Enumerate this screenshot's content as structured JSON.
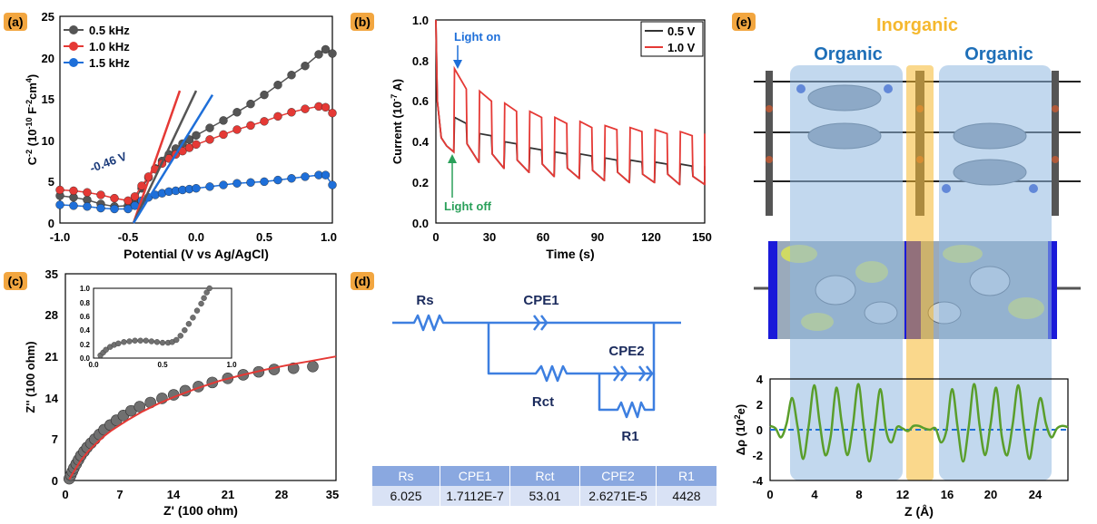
{
  "chart_data": [
    {
      "panel": "(a)",
      "type": "scatter",
      "xlabel": "Potential (V vs Ag/AgCl)",
      "ylabel_base": "C",
      "ylabel_sup": "-2",
      "ylabel_mid": " (10",
      "ylabel_sup2": "-10",
      "ylabel_mid2": " F",
      "ylabel_sup3": "-2",
      "ylabel_mid3": "cm",
      "ylabel_sup4": "4",
      "ylabel_end": ")",
      "xlim": [
        -1.0,
        1.0
      ],
      "ylim": [
        0,
        25
      ],
      "xticks": [
        "-1.0",
        "-0.5",
        "0.0",
        "0.5",
        "1.0"
      ],
      "yticks": [
        "0",
        "5",
        "10",
        "15",
        "20",
        "25"
      ],
      "annotation": "-0.46 V",
      "series": [
        {
          "name": "0.5 kHz",
          "color": "#555555",
          "x": [
            -1.0,
            -0.9,
            -0.8,
            -0.7,
            -0.6,
            -0.5,
            -0.45,
            -0.4,
            -0.35,
            -0.3,
            -0.25,
            -0.2,
            -0.15,
            -0.1,
            -0.05,
            0.0,
            0.1,
            0.2,
            0.3,
            0.4,
            0.5,
            0.6,
            0.7,
            0.8,
            0.9,
            0.95,
            1.0
          ],
          "y": [
            3.3,
            3.1,
            2.8,
            2.3,
            2.0,
            2.1,
            2.8,
            4.2,
            5.5,
            6.6,
            7.5,
            8.3,
            9.0,
            9.6,
            10.1,
            10.6,
            11.5,
            12.4,
            13.4,
            14.4,
            15.5,
            16.7,
            17.9,
            19.0,
            20.4,
            21.0,
            20.5
          ]
        },
        {
          "name": "1.0 kHz",
          "color": "#e53935",
          "x": [
            -1.0,
            -0.9,
            -0.8,
            -0.7,
            -0.6,
            -0.5,
            -0.45,
            -0.4,
            -0.35,
            -0.3,
            -0.25,
            -0.2,
            -0.15,
            -0.1,
            -0.05,
            0.0,
            0.1,
            0.2,
            0.3,
            0.4,
            0.5,
            0.6,
            0.7,
            0.8,
            0.9,
            0.95,
            1.0
          ],
          "y": [
            4.0,
            3.9,
            3.7,
            3.4,
            3.0,
            2.7,
            3.2,
            4.5,
            5.6,
            6.5,
            7.2,
            7.8,
            8.3,
            8.7,
            9.1,
            9.5,
            10.1,
            10.7,
            11.3,
            11.8,
            12.3,
            12.9,
            13.4,
            13.8,
            14.1,
            14.0,
            13.3
          ]
        },
        {
          "name": "1.5 kHz",
          "color": "#1e6fd9",
          "x": [
            -1.0,
            -0.9,
            -0.8,
            -0.7,
            -0.6,
            -0.5,
            -0.45,
            -0.4,
            -0.35,
            -0.3,
            -0.25,
            -0.2,
            -0.15,
            -0.1,
            -0.05,
            0.0,
            0.1,
            0.2,
            0.3,
            0.4,
            0.5,
            0.6,
            0.7,
            0.8,
            0.9,
            0.95,
            1.0
          ],
          "y": [
            2.2,
            2.1,
            2.0,
            1.8,
            1.7,
            1.7,
            2.1,
            2.7,
            3.1,
            3.4,
            3.6,
            3.8,
            3.9,
            4.0,
            4.1,
            4.2,
            4.4,
            4.6,
            4.8,
            4.9,
            5.0,
            5.2,
            5.4,
            5.6,
            5.8,
            5.8,
            4.6
          ]
        }
      ],
      "fit_lines": [
        {
          "color": "#e53935",
          "x": [
            -0.46,
            -0.12
          ],
          "y": [
            0,
            16
          ]
        },
        {
          "color": "#555555",
          "x": [
            -0.46,
            -0.0
          ],
          "y": [
            0,
            16
          ]
        },
        {
          "color": "#1e6fd9",
          "x": [
            -0.46,
            0.12
          ],
          "y": [
            0,
            15.5
          ]
        }
      ]
    },
    {
      "panel": "(b)",
      "type": "line",
      "xlabel": "Time (s)",
      "ylabel_pre": "Current (10",
      "ylabel_sup": "-7",
      "ylabel_post": " A)",
      "xlim": [
        0,
        150
      ],
      "ylim": [
        0,
        1.0
      ],
      "xticks": [
        "0",
        "30",
        "60",
        "90",
        "120",
        "150"
      ],
      "yticks": [
        "0.0",
        "0.2",
        "0.4",
        "0.6",
        "0.8",
        "1.0"
      ],
      "annotation_on": "Light on",
      "annotation_off": "Light off",
      "period": 14,
      "on_duration": 7,
      "series": [
        {
          "name": "0.5 V",
          "color": "#333333",
          "peaks": [
            0.52,
            0.44,
            0.4,
            0.37,
            0.35,
            0.34,
            0.32,
            0.31,
            0.3,
            0.29,
            0.28
          ],
          "plateaus": [
            0.49,
            0.43,
            0.39,
            0.36,
            0.34,
            0.33,
            0.31,
            0.3,
            0.29,
            0.28,
            0.27
          ],
          "troughs": [
            0.35,
            0.3,
            0.27,
            0.25,
            0.23,
            0.22,
            0.21,
            0.2,
            0.2,
            0.19,
            0.19
          ]
        },
        {
          "name": "1.0 V",
          "color": "#e53935",
          "peaks": [
            0.76,
            0.65,
            0.59,
            0.55,
            0.52,
            0.5,
            0.48,
            0.47,
            0.46,
            0.45,
            0.44
          ],
          "plateaus": [
            0.66,
            0.6,
            0.55,
            0.52,
            0.49,
            0.47,
            0.46,
            0.45,
            0.44,
            0.43,
            0.42
          ],
          "troughs": [
            0.35,
            0.3,
            0.27,
            0.25,
            0.23,
            0.22,
            0.21,
            0.2,
            0.2,
            0.19,
            0.19
          ]
        }
      ]
    },
    {
      "panel": "(c)",
      "type": "scatter",
      "xlabel": "Z' (100 ohm)",
      "ylabel": "Z'' (100 ohm)",
      "xlim": [
        0,
        35
      ],
      "ylim": [
        0,
        35
      ],
      "xticks": [
        "0",
        "7",
        "14",
        "21",
        "28",
        "35"
      ],
      "yticks": [
        "0",
        "7",
        "14",
        "21",
        "28",
        "35"
      ],
      "points": {
        "x": [
          0.5,
          0.7,
          0.9,
          1.1,
          1.4,
          1.7,
          2.0,
          2.4,
          2.8,
          3.3,
          3.8,
          4.4,
          5.0,
          5.8,
          6.6,
          7.5,
          8.5,
          9.6,
          11.0,
          12.5,
          14.0,
          15.5,
          17.2,
          19.0,
          21.0,
          23.0,
          25.0,
          27.0,
          29.5,
          32.0
        ],
        "y": [
          0.3,
          0.9,
          1.5,
          2.1,
          2.8,
          3.5,
          4.2,
          4.9,
          5.6,
          6.3,
          7.0,
          7.8,
          8.6,
          9.4,
          10.2,
          11.0,
          11.8,
          12.5,
          13.2,
          13.9,
          14.5,
          15.2,
          15.9,
          16.6,
          17.3,
          17.9,
          18.4,
          18.8,
          19.0,
          19.3
        ]
      },
      "fit": {
        "x": [
          0.5,
          1,
          2,
          3,
          4,
          5,
          6,
          8,
          10,
          12,
          14,
          17,
          20,
          23,
          26,
          29,
          32,
          35
        ],
        "y": [
          0.2,
          1.3,
          3.4,
          5.0,
          6.3,
          7.5,
          8.5,
          10.2,
          11.7,
          13.0,
          14.1,
          15.6,
          16.9,
          17.9,
          18.8,
          19.6,
          20.3,
          21.0
        ]
      },
      "inset": {
        "xlim": [
          0,
          1.0
        ],
        "ylim": [
          0,
          1.0
        ],
        "xticks": [
          "0.0",
          "0.5",
          "1.0"
        ],
        "yticks": [
          "0.0",
          "0.2",
          "0.4",
          "0.6",
          "0.8",
          "1.0"
        ],
        "x": [
          0.05,
          0.07,
          0.09,
          0.12,
          0.15,
          0.18,
          0.22,
          0.26,
          0.3,
          0.34,
          0.38,
          0.42,
          0.46,
          0.5,
          0.54,
          0.57,
          0.6,
          0.63,
          0.66,
          0.69,
          0.72,
          0.75,
          0.78,
          0.8,
          0.82,
          0.84
        ],
        "y": [
          0.04,
          0.08,
          0.12,
          0.16,
          0.19,
          0.21,
          0.23,
          0.24,
          0.25,
          0.25,
          0.25,
          0.24,
          0.23,
          0.22,
          0.22,
          0.23,
          0.26,
          0.32,
          0.4,
          0.49,
          0.58,
          0.68,
          0.78,
          0.86,
          0.94,
          1.0
        ]
      }
    },
    {
      "panel": "(e)",
      "type": "line",
      "xlabel": "Z (Å)",
      "ylabel_pre": "Δρ (10",
      "ylabel_sup": "2",
      "ylabel_post": "e)",
      "xlim": [
        0,
        27
      ],
      "ylim": [
        -4,
        4
      ],
      "xticks": [
        "0",
        "4",
        "8",
        "12",
        "16",
        "20",
        "24"
      ],
      "yticks": [
        "-4",
        "-2",
        "0",
        "2",
        "4"
      ],
      "series": {
        "color": "#5a9e2b",
        "x": [
          0,
          0.5,
          1,
          1.5,
          2,
          2.5,
          3,
          3.5,
          4,
          4.5,
          5,
          5.5,
          6,
          6.5,
          7,
          7.5,
          8,
          8.5,
          9,
          9.5,
          10,
          10.5,
          11,
          11.5,
          12,
          12.5,
          13,
          13.5,
          14,
          14.5,
          15,
          15.5,
          16,
          16.5,
          17,
          17.5,
          18,
          18.5,
          19,
          19.5,
          20,
          20.5,
          21,
          21.5,
          22,
          22.5,
          23,
          23.5,
          24,
          24.5,
          25,
          25.5,
          26,
          26.5,
          27
        ],
        "y": [
          0.3,
          0.1,
          -0.6,
          0.5,
          2.5,
          0.2,
          -2.3,
          0.3,
          3.5,
          0.5,
          -2.0,
          -0.5,
          3.3,
          0.5,
          -2.0,
          0.3,
          3.6,
          0.2,
          -2.5,
          0.2,
          3.2,
          0.0,
          -1.0,
          0.2,
          0.1,
          -0.1,
          0.3,
          0.3,
          0.1,
          0.0,
          0.1,
          -1.0,
          0.0,
          3.2,
          0.2,
          -2.5,
          0.2,
          3.6,
          0.3,
          -2.0,
          0.5,
          3.3,
          -0.5,
          -2.0,
          0.5,
          3.5,
          0.3,
          -2.3,
          0.2,
          2.5,
          0.5,
          -0.6,
          0.1,
          0.3,
          0.2
        ]
      },
      "baseline_color": "#1e6fd9"
    }
  ],
  "panels": {
    "a": "(a)",
    "b": "(b)",
    "c": "(c)",
    "d": "(d)",
    "e": "(e)"
  },
  "circuit": {
    "labels": {
      "rs": "Rs",
      "cpe1": "CPE1",
      "cpe2": "CPE2",
      "rct": "Rct",
      "r1": "R1"
    },
    "color": "#3d7fe0",
    "label_color": "#1a2a5c"
  },
  "fit_table": {
    "headers": [
      "Rs",
      "CPE1",
      "Rct",
      "CPE2",
      "R1"
    ],
    "values": [
      "6.025",
      "1.7112E-7",
      "53.01",
      "2.6271E-5",
      "4428"
    ]
  },
  "structure": {
    "label_inorganic": "Inorganic",
    "label_organic_left": "Organic",
    "label_organic_right": "Organic",
    "inorganic_color": "#f5b82e",
    "organic_color": "#1e6fb8",
    "band_color": "#8fb8e0"
  },
  "colors": {
    "panel_badge": "#f2a640"
  }
}
